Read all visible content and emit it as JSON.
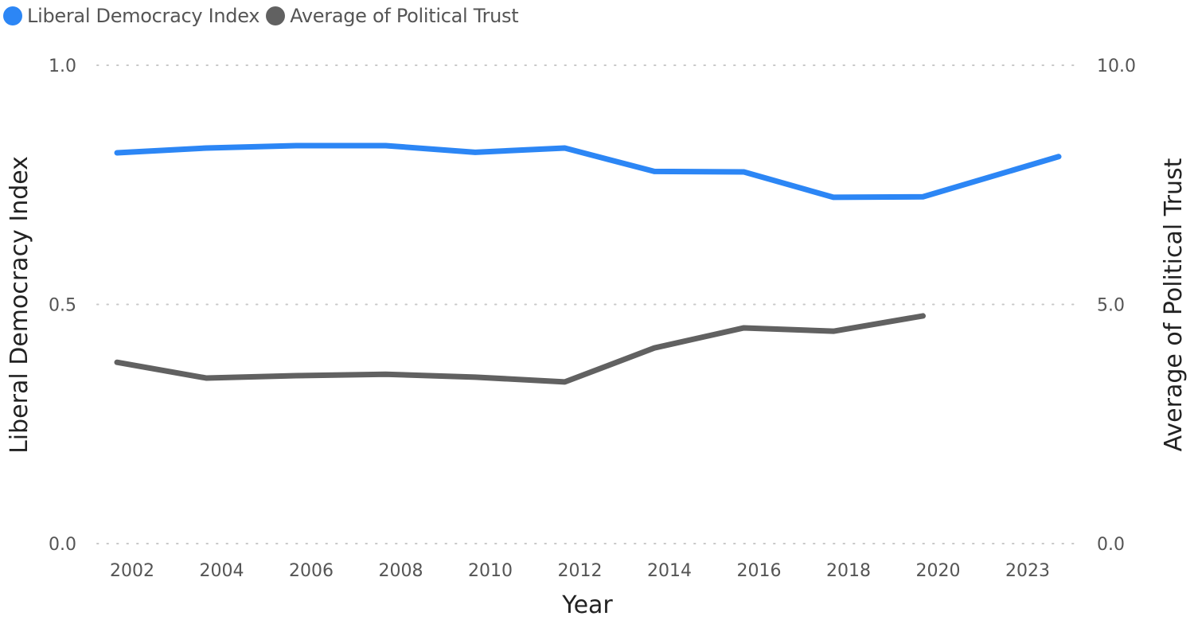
{
  "legend": {
    "items": [
      {
        "label": "Liberal Democracy Index",
        "color": "#2C86F5"
      },
      {
        "label": "Average of Political Trust",
        "color": "#616161"
      }
    ]
  },
  "chart_data": {
    "type": "line",
    "title": "",
    "xlabel": "Year",
    "ylabel": "Liberal Democracy Index",
    "y2label": "Average of Political Trust",
    "x": [
      "2002",
      "2004",
      "2006",
      "2008",
      "2010",
      "2012",
      "2014",
      "2016",
      "2018",
      "2020",
      "2023"
    ],
    "ylim": [
      0,
      1
    ],
    "y2lim": [
      0,
      10
    ],
    "yticks": [
      "0.0",
      "0.5",
      "1.0"
    ],
    "y2ticks": [
      "0.0",
      "5.0",
      "10.0"
    ],
    "grid": "dotted horizontal",
    "legend_position": "top-left",
    "series": [
      {
        "name": "Liberal Democracy Index",
        "axis": "left",
        "color": "#2C86F5",
        "values": [
          0.817,
          0.827,
          0.832,
          0.832,
          0.818,
          0.827,
          0.778,
          0.777,
          0.724,
          0.725,
          0.809
        ]
      },
      {
        "name": "Average of Political Trust",
        "axis": "right",
        "color": "#616161",
        "values": [
          3.79,
          3.46,
          3.51,
          3.54,
          3.48,
          3.38,
          4.09,
          4.51,
          4.44,
          4.76,
          null
        ]
      }
    ]
  }
}
